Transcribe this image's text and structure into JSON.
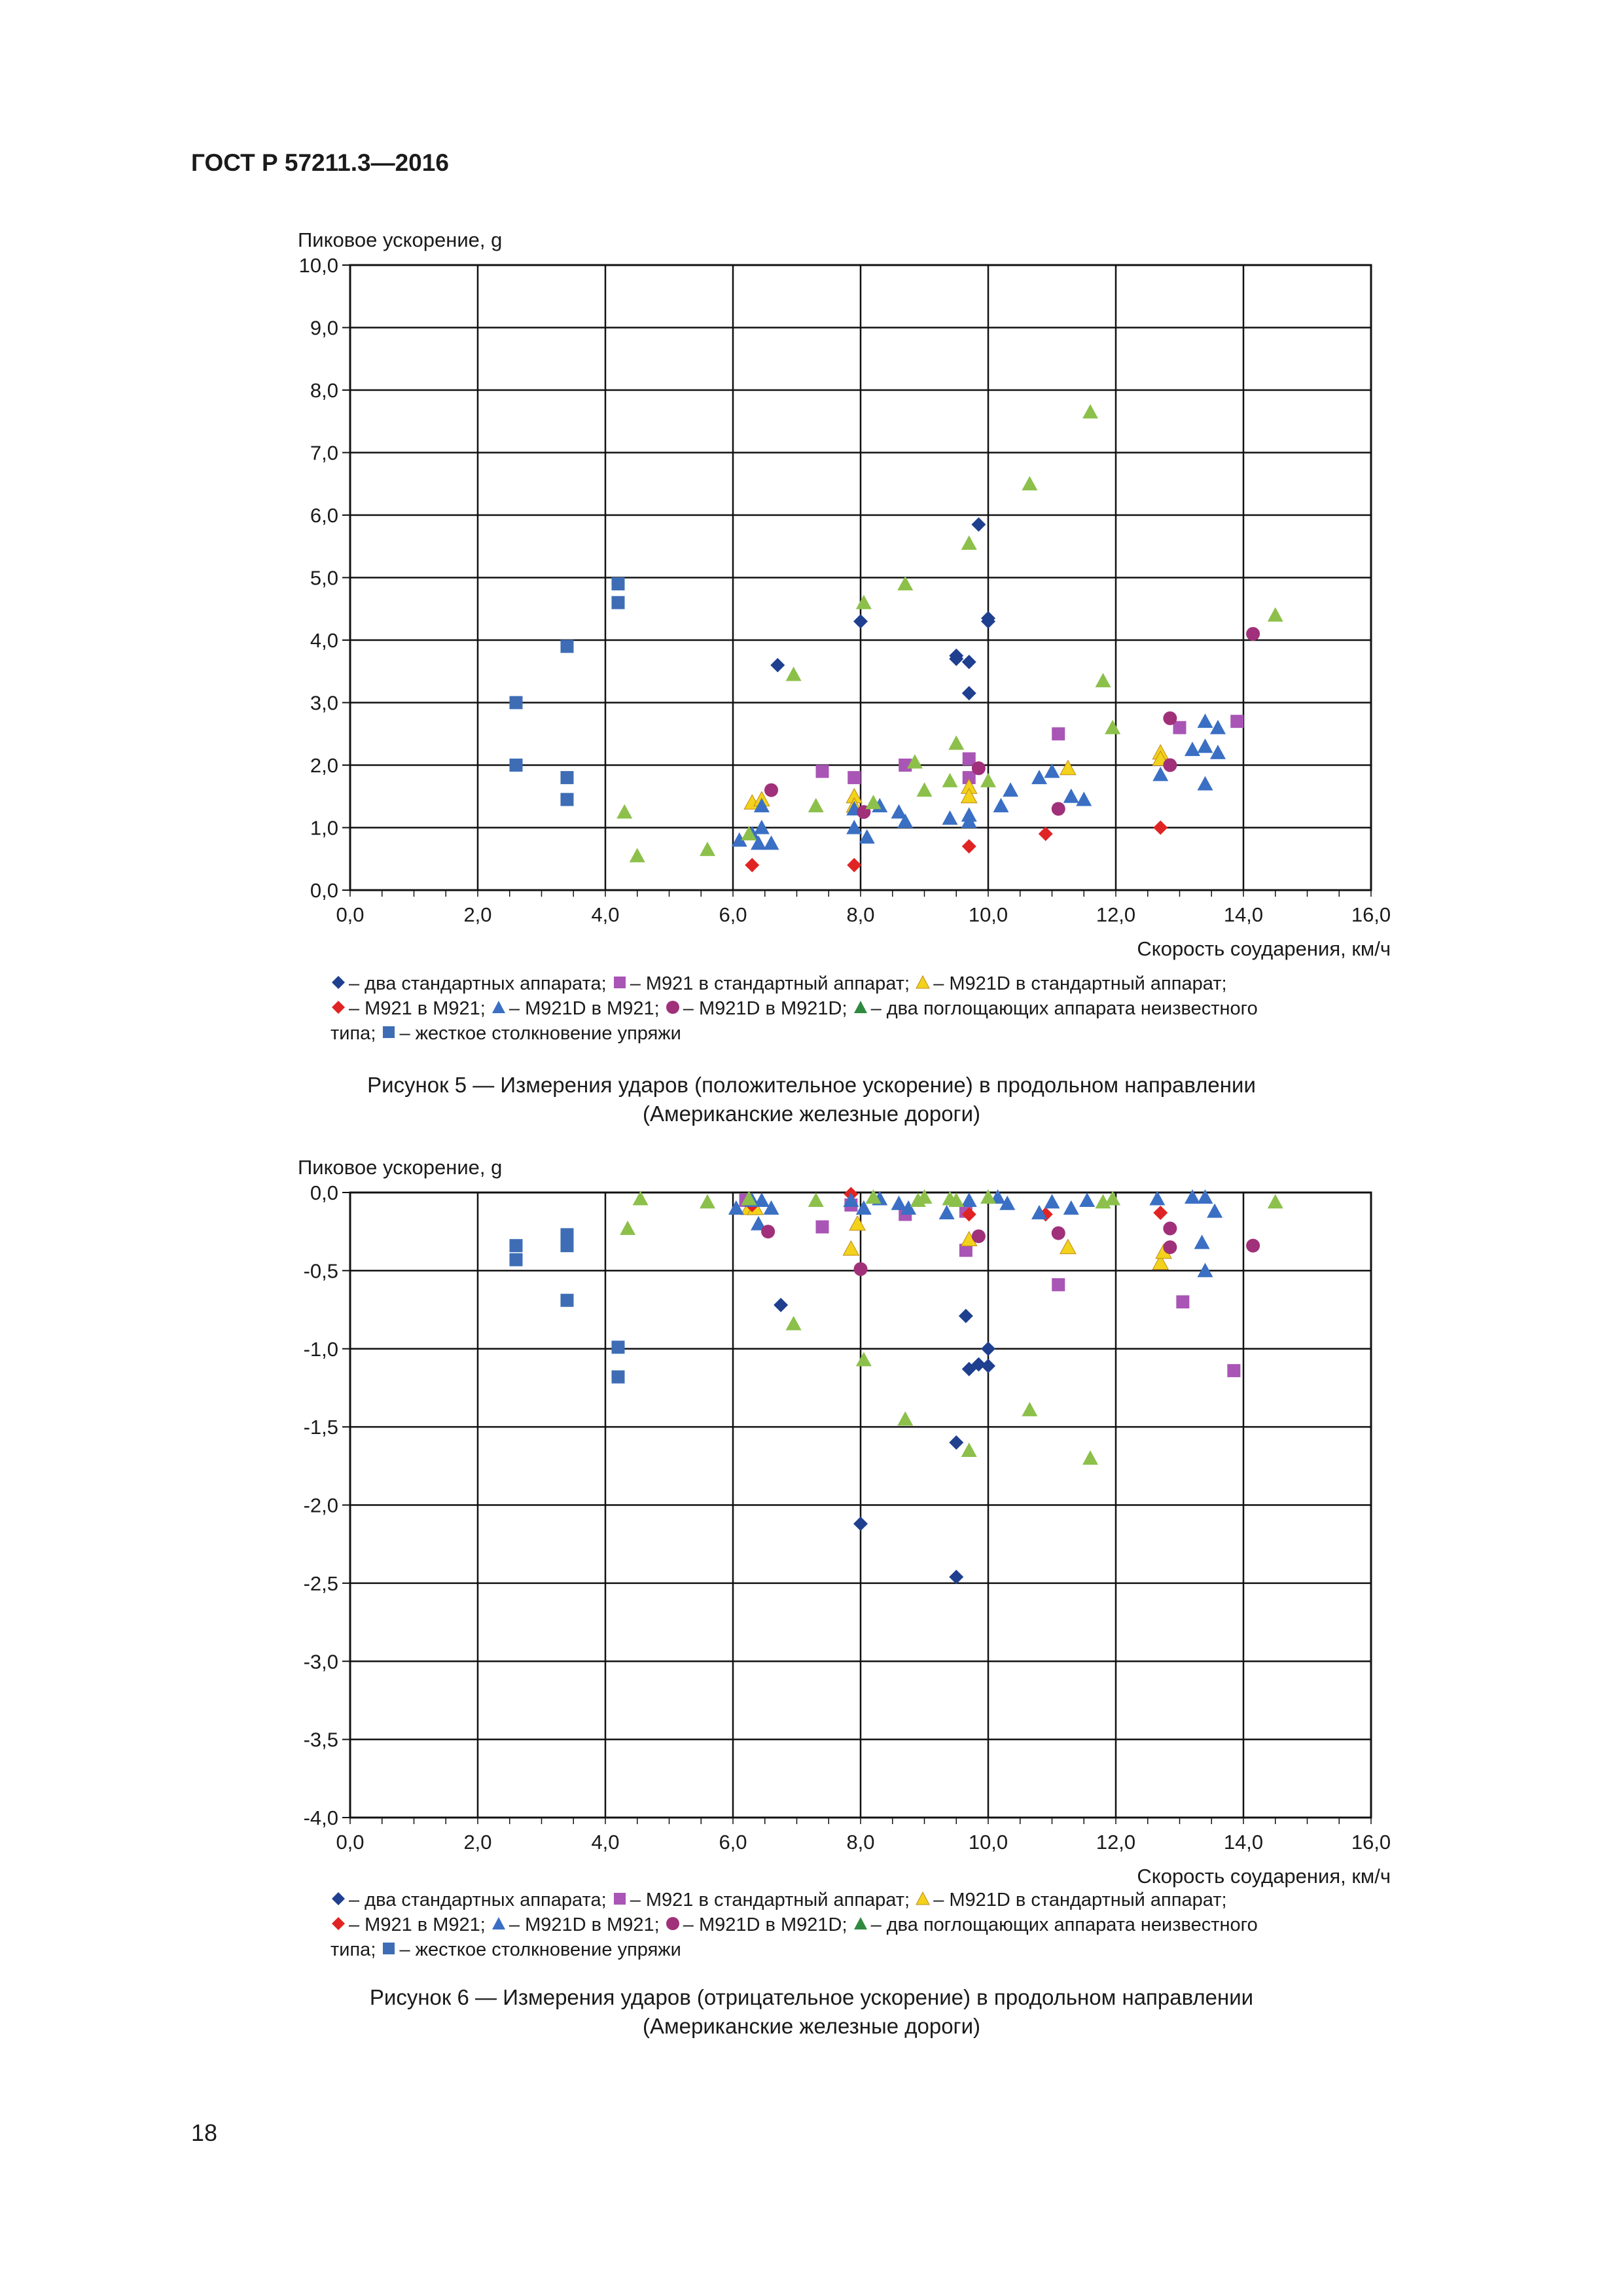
{
  "header": {
    "title": "ГОСТ Р 57211.3—2016"
  },
  "page_number": "18",
  "series_styles": {
    "two_standard": {
      "color": "#1f3f8f",
      "shape": "diamond",
      "label": "– два стандартных аппарата;"
    },
    "m921_standard": {
      "color": "#a855b5",
      "shape": "square",
      "label": "– M921 в стандартный аппарат;"
    },
    "m921d_standard": {
      "color": "#f2d21b",
      "shape": "triangle",
      "label": "– M921D в стандартный аппарат;"
    },
    "m921_m921": {
      "color": "#e02424",
      "shape": "diamond",
      "label": "– M921 в M921;"
    },
    "m921d_m921": {
      "color": "#3a6fc4",
      "shape": "triangle",
      "label": "– M921D в M921;"
    },
    "m921d_m921d": {
      "color": "#a0307a",
      "shape": "circle",
      "label": "– M921D в M921D;"
    },
    "two_absorbing": {
      "color": "#8cc04a",
      "shape": "triangle",
      "label": "– два поглощающих аппарата неизвестного типа;"
    },
    "rigid_coupling": {
      "color": "#3e6db5",
      "shape": "square",
      "label": "– жесткое столкновение упряжи"
    }
  },
  "legend": {
    "two_standard": "– два стандартных аппарата;",
    "m921_standard": "– M921 в стандартный аппарат;",
    "m921d_standard": "– M921D в стандартный аппарат;",
    "m921_m921": "– M921 в M921;",
    "m921d_m921": "– M921D в M921;",
    "m921d_m921d": "– M921D в M921D;",
    "two_absorbing": "– два поглощающих аппарата неизвестного",
    "two_absorbing_cont": "типа;",
    "rigid_coupling": "– жесткое столкновение упряжи"
  },
  "captions": {
    "fig5_line1": "Рисунок 5 — Измерения ударов (положительное ускорение) в продольном направлении",
    "fig5_line2": "(Американские железные дороги)",
    "fig6_line1": "Рисунок 6 — Измерения ударов (отрицательное ускорение) в продольном направлении",
    "fig6_line2": "(Американские железные дороги)"
  },
  "chart_data": [
    {
      "type": "scatter",
      "title": "",
      "ylabel": "Пиковое ускорение, g",
      "xlabel": "Скорость соударения, км/ч",
      "xlim": [
        0,
        16
      ],
      "ylim": [
        0,
        10
      ],
      "x_ticks": [
        "0,0",
        "2,0",
        "4,0",
        "6,0",
        "8,0",
        "10,0",
        "12,0",
        "14,0",
        "16,0"
      ],
      "y_ticks": [
        "0,0",
        "1,0",
        "2,0",
        "3,0",
        "4,0",
        "5,0",
        "6,0",
        "7,0",
        "8,0",
        "9,0",
        "10,0"
      ],
      "grid": true,
      "series": [
        {
          "key": "two_standard",
          "points": [
            [
              6.7,
              3.6
            ],
            [
              8.0,
              4.3
            ],
            [
              9.5,
              3.7
            ],
            [
              9.5,
              3.75
            ],
            [
              9.7,
              3.65
            ],
            [
              9.7,
              3.15
            ],
            [
              9.85,
              5.85
            ],
            [
              10.0,
              4.3
            ],
            [
              10.0,
              4.35
            ]
          ]
        },
        {
          "key": "m921_standard",
          "points": [
            [
              7.4,
              1.9
            ],
            [
              7.9,
              1.8
            ],
            [
              8.7,
              2.0
            ],
            [
              9.7,
              2.1
            ],
            [
              9.7,
              1.8
            ],
            [
              11.1,
              2.5
            ],
            [
              13.0,
              2.6
            ],
            [
              13.9,
              2.7
            ]
          ]
        },
        {
          "key": "m921d_standard",
          "points": [
            [
              6.3,
              1.4
            ],
            [
              6.45,
              1.45
            ],
            [
              7.9,
              1.5
            ],
            [
              7.9,
              1.35
            ],
            [
              9.7,
              1.65
            ],
            [
              9.7,
              1.5
            ],
            [
              11.25,
              1.95
            ],
            [
              12.7,
              2.2
            ],
            [
              12.7,
              2.1
            ]
          ]
        },
        {
          "key": "m921_m921",
          "points": [
            [
              6.3,
              0.4
            ],
            [
              7.9,
              0.4
            ],
            [
              9.7,
              0.7
            ],
            [
              10.9,
              0.9
            ],
            [
              12.7,
              1.0
            ]
          ]
        },
        {
          "key": "m921d_m921",
          "points": [
            [
              6.1,
              0.8
            ],
            [
              6.3,
              0.9
            ],
            [
              6.4,
              0.75
            ],
            [
              6.45,
              1.35
            ],
            [
              6.45,
              1.0
            ],
            [
              6.6,
              0.75
            ],
            [
              7.9,
              1.3
            ],
            [
              7.9,
              1.0
            ],
            [
              8.1,
              0.85
            ],
            [
              8.3,
              1.35
            ],
            [
              8.6,
              1.25
            ],
            [
              8.7,
              1.1
            ],
            [
              9.4,
              1.15
            ],
            [
              9.7,
              1.2
            ],
            [
              9.7,
              1.1
            ],
            [
              10.2,
              1.35
            ],
            [
              10.35,
              1.6
            ],
            [
              10.8,
              1.8
            ],
            [
              11.0,
              1.9
            ],
            [
              11.3,
              1.5
            ],
            [
              11.5,
              1.45
            ],
            [
              12.7,
              1.85
            ],
            [
              13.2,
              2.25
            ],
            [
              13.4,
              2.7
            ],
            [
              13.4,
              2.3
            ],
            [
              13.6,
              2.6
            ],
            [
              13.6,
              2.2
            ],
            [
              13.4,
              1.7
            ]
          ]
        },
        {
          "key": "m921d_m921d",
          "points": [
            [
              6.6,
              1.6
            ],
            [
              8.05,
              1.25
            ],
            [
              9.85,
              1.95
            ],
            [
              11.1,
              1.3
            ],
            [
              12.85,
              2.75
            ],
            [
              12.85,
              2.0
            ],
            [
              14.15,
              4.1
            ]
          ]
        },
        {
          "key": "two_absorbing",
          "points": [
            [
              4.3,
              1.25
            ],
            [
              4.5,
              0.55
            ],
            [
              5.6,
              0.65
            ],
            [
              6.25,
              0.9
            ],
            [
              7.3,
              1.35
            ],
            [
              6.95,
              3.45
            ],
            [
              8.05,
              4.6
            ],
            [
              8.2,
              1.4
            ],
            [
              8.7,
              4.9
            ],
            [
              8.85,
              2.05
            ],
            [
              9.0,
              1.6
            ],
            [
              9.4,
              1.75
            ],
            [
              9.5,
              2.35
            ],
            [
              9.7,
              5.55
            ],
            [
              10.0,
              1.75
            ],
            [
              10.65,
              6.5
            ],
            [
              11.6,
              7.65
            ],
            [
              11.8,
              3.35
            ],
            [
              11.95,
              2.6
            ],
            [
              14.5,
              4.4
            ]
          ]
        },
        {
          "key": "rigid_coupling",
          "points": [
            [
              2.6,
              3.0
            ],
            [
              2.6,
              2.0
            ],
            [
              3.4,
              3.9
            ],
            [
              3.4,
              1.8
            ],
            [
              3.4,
              1.45
            ],
            [
              4.2,
              4.9
            ],
            [
              4.2,
              4.6
            ]
          ]
        }
      ]
    },
    {
      "type": "scatter",
      "title": "",
      "ylabel": "Пиковое ускорение, g",
      "xlabel": "Скорость соударения, км/ч",
      "xlim": [
        0,
        16
      ],
      "ylim": [
        -4,
        0
      ],
      "x_ticks": [
        "0,0",
        "2,0",
        "4,0",
        "6,0",
        "8,0",
        "10,0",
        "12,0",
        "14,0",
        "16,0"
      ],
      "y_ticks": [
        "0,0",
        "-0,5",
        "-1,0",
        "-1,5",
        "-2,0",
        "-2,5",
        "-3,0",
        "-3,5",
        "-4,0"
      ],
      "grid": true,
      "series": [
        {
          "key": "two_standard",
          "points": [
            [
              6.75,
              -0.72
            ],
            [
              8.0,
              -2.12
            ],
            [
              9.5,
              -1.6
            ],
            [
              9.5,
              -2.46
            ],
            [
              9.65,
              -0.79
            ],
            [
              9.7,
              -1.13
            ],
            [
              9.85,
              -1.1
            ],
            [
              10.0,
              -1.11
            ],
            [
              10.0,
              -1.0
            ]
          ]
        },
        {
          "key": "m921_standard",
          "points": [
            [
              6.2,
              -0.05
            ],
            [
              7.4,
              -0.22
            ],
            [
              7.85,
              -0.08
            ],
            [
              8.7,
              -0.14
            ],
            [
              9.65,
              -0.37
            ],
            [
              9.65,
              -0.12
            ],
            [
              11.1,
              -0.59
            ],
            [
              13.05,
              -0.7
            ],
            [
              13.85,
              -1.14
            ]
          ]
        },
        {
          "key": "m921d_standard",
          "points": [
            [
              6.25,
              -0.1
            ],
            [
              6.35,
              -0.1
            ],
            [
              7.85,
              -0.36
            ],
            [
              7.95,
              -0.2
            ],
            [
              9.7,
              -0.3
            ],
            [
              11.25,
              -0.35
            ],
            [
              12.7,
              -0.45
            ],
            [
              12.75,
              -0.38
            ]
          ]
        },
        {
          "key": "m921_m921",
          "points": [
            [
              6.3,
              -0.08
            ],
            [
              7.85,
              -0.01
            ],
            [
              9.7,
              -0.14
            ],
            [
              10.9,
              -0.14
            ],
            [
              12.7,
              -0.13
            ]
          ]
        },
        {
          "key": "m921d_m921",
          "points": [
            [
              6.05,
              -0.1
            ],
            [
              6.3,
              -0.05
            ],
            [
              6.4,
              -0.2
            ],
            [
              6.45,
              -0.05
            ],
            [
              6.6,
              -0.1
            ],
            [
              7.85,
              -0.05
            ],
            [
              8.05,
              -0.1
            ],
            [
              8.3,
              -0.04
            ],
            [
              8.6,
              -0.07
            ],
            [
              8.75,
              -0.1
            ],
            [
              9.35,
              -0.13
            ],
            [
              9.7,
              -0.05
            ],
            [
              10.15,
              -0.03
            ],
            [
              10.3,
              -0.07
            ],
            [
              10.8,
              -0.13
            ],
            [
              11.0,
              -0.06
            ],
            [
              11.3,
              -0.1
            ],
            [
              11.55,
              -0.05
            ],
            [
              12.65,
              -0.04
            ],
            [
              13.2,
              -0.03
            ],
            [
              13.35,
              -0.32
            ],
            [
              13.4,
              -0.03
            ],
            [
              13.4,
              -0.5
            ],
            [
              13.55,
              -0.12
            ]
          ]
        },
        {
          "key": "m921d_m921d",
          "points": [
            [
              6.55,
              -0.25
            ],
            [
              8.0,
              -0.49
            ],
            [
              9.85,
              -0.28
            ],
            [
              11.1,
              -0.26
            ],
            [
              12.85,
              -0.23
            ],
            [
              12.85,
              -0.35
            ],
            [
              14.15,
              -0.34
            ]
          ]
        },
        {
          "key": "two_absorbing",
          "points": [
            [
              4.35,
              -0.23
            ],
            [
              4.55,
              -0.04
            ],
            [
              5.6,
              -0.06
            ],
            [
              6.25,
              -0.04
            ],
            [
              7.3,
              -0.05
            ],
            [
              6.95,
              -0.84
            ],
            [
              8.05,
              -1.07
            ],
            [
              8.2,
              -0.03
            ],
            [
              8.7,
              -1.45
            ],
            [
              8.9,
              -0.05
            ],
            [
              9.0,
              -0.03
            ],
            [
              9.4,
              -0.04
            ],
            [
              9.5,
              -0.05
            ],
            [
              9.7,
              -1.65
            ],
            [
              10.0,
              -0.03
            ],
            [
              10.65,
              -1.39
            ],
            [
              11.6,
              -1.7
            ],
            [
              11.8,
              -0.06
            ],
            [
              11.95,
              -0.04
            ],
            [
              14.5,
              -0.06
            ]
          ]
        },
        {
          "key": "rigid_coupling",
          "points": [
            [
              2.6,
              -0.34
            ],
            [
              2.6,
              -0.43
            ],
            [
              3.4,
              -0.27
            ],
            [
              3.4,
              -0.34
            ],
            [
              3.4,
              -0.69
            ],
            [
              4.2,
              -0.99
            ],
            [
              4.2,
              -1.18
            ]
          ]
        }
      ]
    }
  ]
}
